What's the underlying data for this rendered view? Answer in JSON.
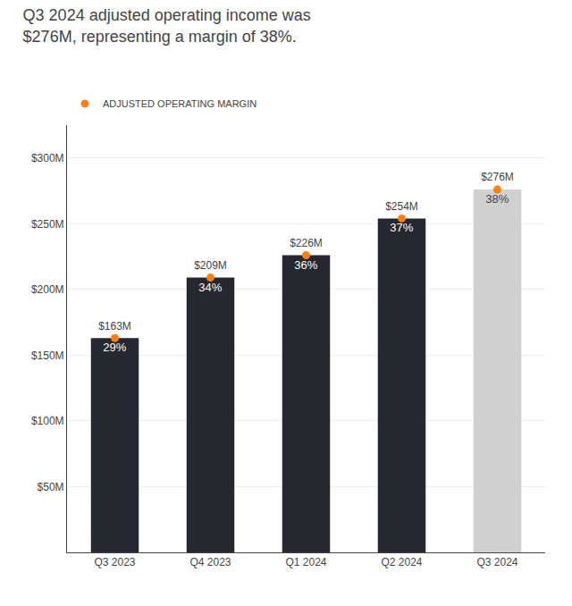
{
  "chart_data": {
    "type": "bar",
    "title": "Q3 2024 adjusted operating income was\n$276M, representing a margin of 38%.",
    "categories": [
      "Q3 2023",
      "Q4 2023",
      "Q1 2024",
      "Q2 2024",
      "Q3 2024"
    ],
    "series": [
      {
        "name": "ADJUSTED OPERATING MARGIN",
        "values": [
          163,
          209,
          226,
          254,
          276
        ],
        "value_labels": [
          "$163M",
          "$209M",
          "$226M",
          "$254M",
          "$276M"
        ],
        "colors": [
          "#252830",
          "#252830",
          "#252830",
          "#252830",
          "#d0d0d0"
        ],
        "marker": "circle",
        "margins": [
          {
            "value": 29,
            "label": "29%"
          },
          {
            "value": 34,
            "label": "34%"
          },
          {
            "value": 36,
            "label": "36%"
          },
          {
            "value": 37,
            "label": "37%"
          },
          {
            "value": 38,
            "label": "38%"
          }
        ]
      }
    ],
    "ylim": [
      0,
      325
    ],
    "yticks": [
      {
        "value": 50,
        "label": "$50M"
      },
      {
        "value": 100,
        "label": "$100M"
      },
      {
        "value": 150,
        "label": "$150M"
      },
      {
        "value": 200,
        "label": "$200M"
      },
      {
        "value": 250,
        "label": "$250M"
      },
      {
        "value": 300,
        "label": "$300M"
      }
    ],
    "grid": true,
    "data_labels": true,
    "legend": "top"
  }
}
